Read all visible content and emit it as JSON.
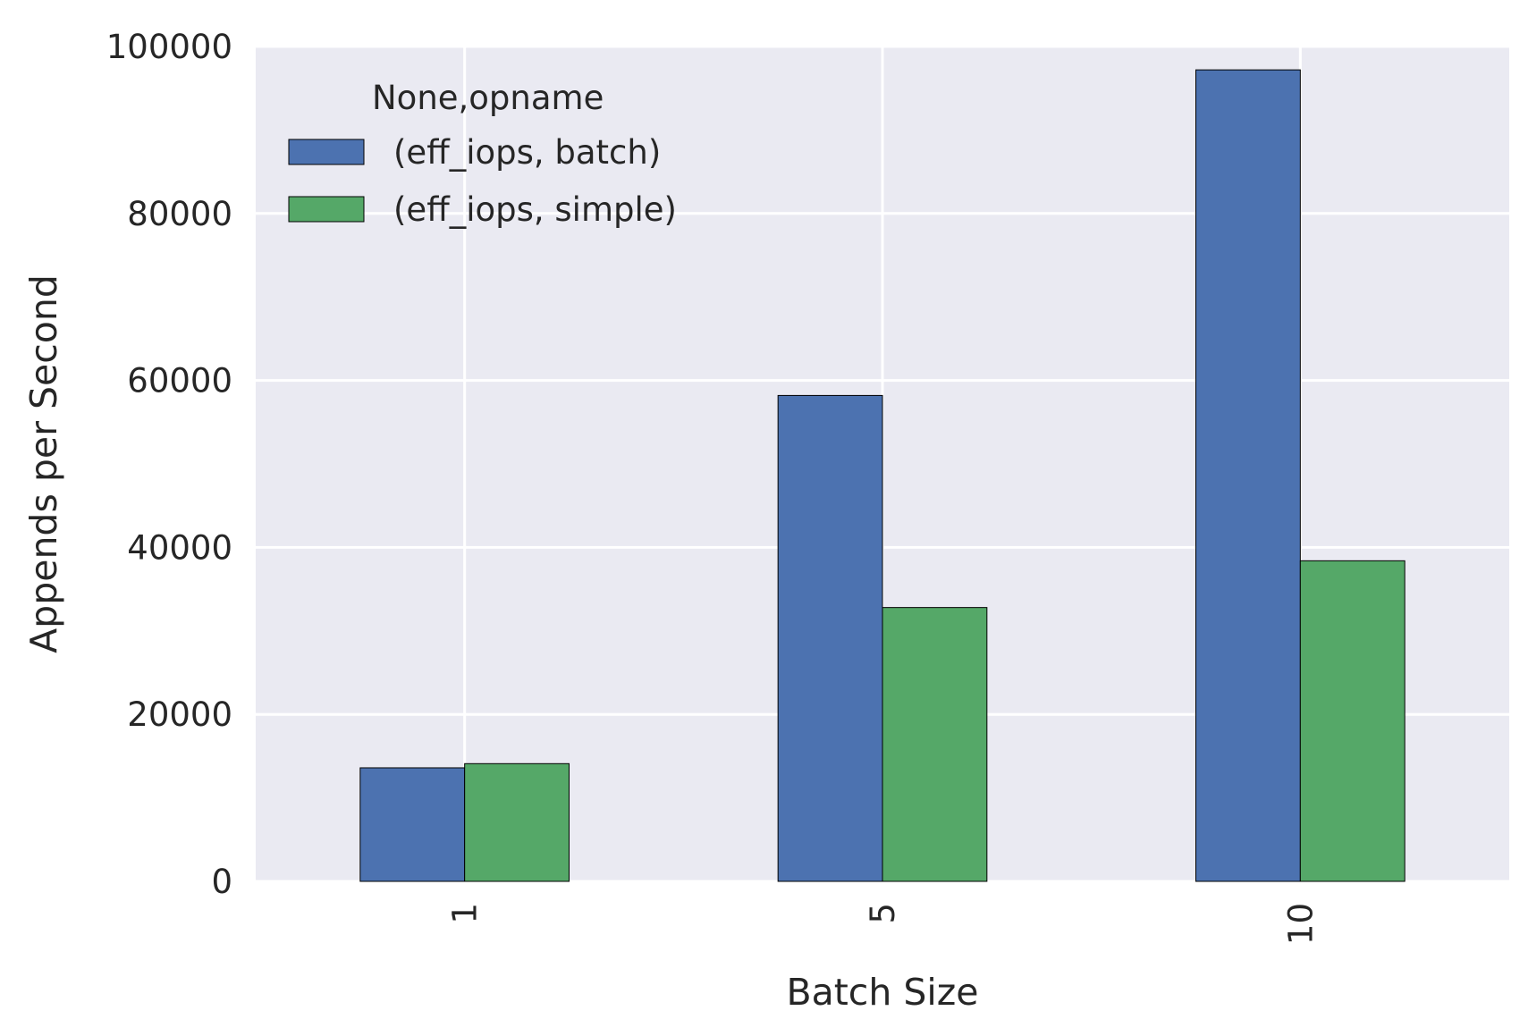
{
  "chart_data": {
    "type": "bar",
    "categories": [
      "1",
      "5",
      "10"
    ],
    "series": [
      {
        "name": "(eff_iops, batch)",
        "values": [
          13600,
          58200,
          97200
        ],
        "color": "#4c72b0"
      },
      {
        "name": "(eff_iops, simple)",
        "values": [
          14100,
          32800,
          38400
        ],
        "color": "#55a868"
      }
    ],
    "title": "",
    "xlabel": "Batch Size",
    "ylabel": "Appends per Second",
    "ylim": [
      0,
      100000
    ],
    "yticks": [
      0,
      20000,
      40000,
      60000,
      80000,
      100000
    ],
    "ytick_labels": [
      "0",
      "20000",
      "40000",
      "60000",
      "80000",
      "100000"
    ],
    "grid": true,
    "legend": {
      "title": "None,opname",
      "placement": "upper-left"
    },
    "colors": {
      "plot_background": "#eaeaf2",
      "grid": "#ffffff",
      "text": "#262626",
      "bar_edge": "#000000"
    }
  }
}
